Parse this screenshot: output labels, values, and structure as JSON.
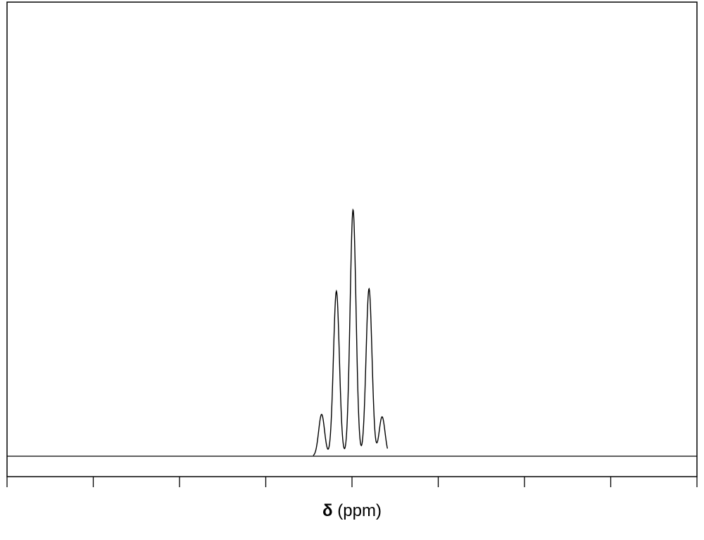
{
  "chart_data": {
    "type": "line",
    "title": "",
    "xlabel_symbol": "δ",
    "xlabel_unit": "(ppm)",
    "ylabel": "",
    "x_ticks_count": 9,
    "tick_labels_shown": false,
    "grid": false,
    "legend": "none",
    "multiplet": {
      "pattern": "quintet",
      "relative_intensities": [
        0.17,
        0.67,
        1.0,
        0.68,
        0.16
      ],
      "relative_positions": [
        -0.183,
        -0.097,
        0.0,
        0.093,
        0.169
      ]
    }
  }
}
